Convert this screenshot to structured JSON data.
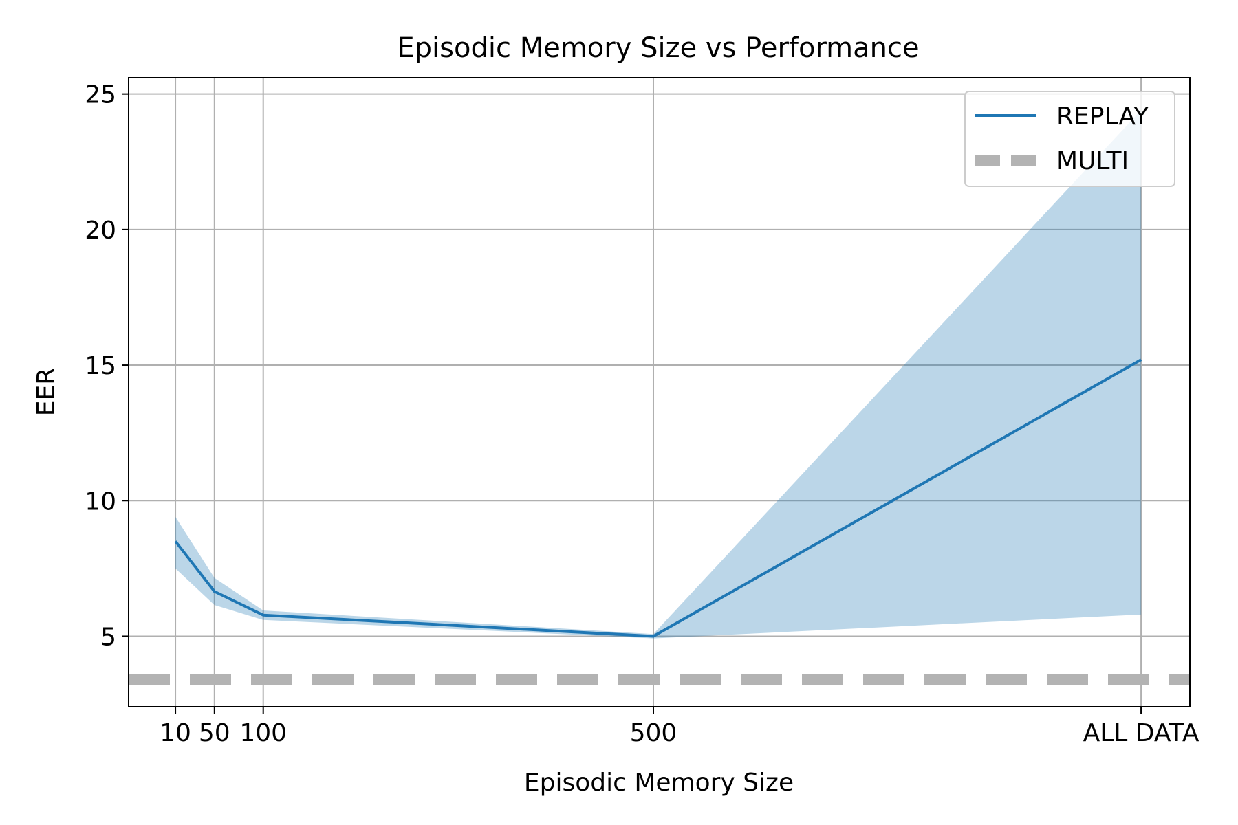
{
  "chart_data": {
    "type": "line",
    "title": "Episodic Memory Size vs Performance",
    "xlabel": "Episodic Memory Size",
    "ylabel": "EER",
    "x_ticks": [
      {
        "label": "10",
        "pos": 10
      },
      {
        "label": "50",
        "pos": 50
      },
      {
        "label": "100",
        "pos": 100
      },
      {
        "label": "500",
        "pos": 500
      },
      {
        "label": "ALL DATA",
        "pos": 1000
      }
    ],
    "xlim": [
      -38,
      1050
    ],
    "ylim": [
      2.4,
      25.6
    ],
    "y_ticks": [
      5,
      10,
      15,
      20,
      25
    ],
    "grid": true,
    "legend_position": "top-right",
    "series": [
      {
        "name": "REPLAY",
        "style": "line",
        "color": "#1f77b4",
        "points": [
          {
            "x": 10,
            "y": 8.5,
            "lower": 7.5,
            "upper": 9.4
          },
          {
            "x": 50,
            "y": 6.65,
            "lower": 6.15,
            "upper": 7.15
          },
          {
            "x": 100,
            "y": 5.78,
            "lower": 5.6,
            "upper": 5.95
          },
          {
            "x": 500,
            "y": 5.0,
            "lower": 4.92,
            "upper": 5.08
          },
          {
            "x": 1000,
            "y": 15.2,
            "lower": 5.8,
            "upper": 24.4
          }
        ]
      },
      {
        "name": "MULTI",
        "style": "dashed-hline",
        "color": "#b3b3b3",
        "y": 3.4
      }
    ]
  }
}
